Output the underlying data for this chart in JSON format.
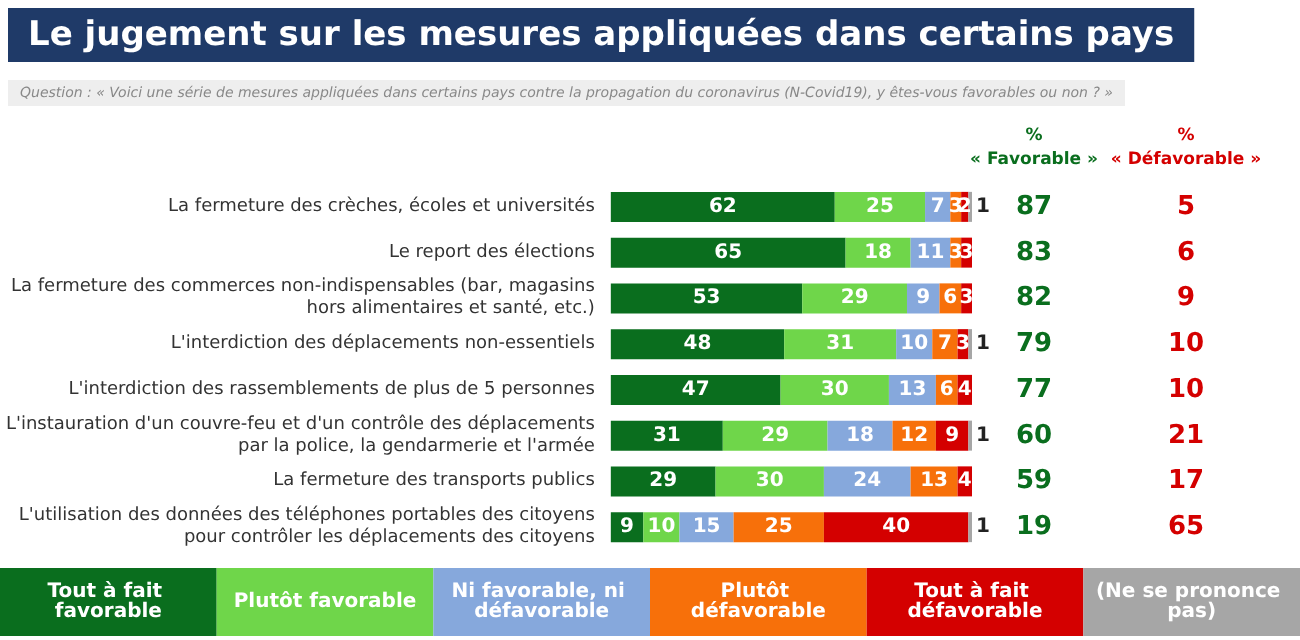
{
  "chart_data": {
    "type": "bar",
    "orientation": "horizontal",
    "stacked": true,
    "data_labels": true,
    "tick_labels": "y",
    "legend": "bottom",
    "title": "Le jugement sur les mesures appliquées dans certains pays",
    "subtitle": "Question : « Voici une série de mesures appliquées dans certains pays contre la propagation du coronavirus (N-Covid19), y êtes-vous favorables ou non ? »",
    "categories": [
      "La fermeture des crèches, écoles et universités",
      "Le report des élections",
      "La fermeture des commerces non-indispensables (bar, magasins\nhors alimentaires et santé, etc.)",
      "L'interdiction des déplacements non-essentiels",
      "L'interdiction des rassemblements de plus de 5 personnes",
      "L'instauration d'un couvre-feu et d'un contrôle des déplacements\npar la police, la gendarmerie et l'armée",
      "La fermeture des transports publics",
      "L'utilisation des données des téléphones portables des citoyens\npour contrôler les déplacements des citoyens"
    ],
    "series": [
      {
        "name": "Tout à fait favorable",
        "color": "#0a6e1e",
        "values": [
          62,
          65,
          53,
          48,
          47,
          31,
          29,
          9
        ]
      },
      {
        "name": "Plutôt favorable",
        "color": "#6fd64a",
        "values": [
          25,
          18,
          29,
          31,
          30,
          29,
          30,
          10
        ]
      },
      {
        "name": "Ni favorable, ni défavorable",
        "color": "#86a8dc",
        "values": [
          7,
          11,
          9,
          10,
          13,
          18,
          24,
          15
        ]
      },
      {
        "name": "Plutôt défavorable",
        "color": "#f7700a",
        "values": [
          3,
          3,
          6,
          7,
          6,
          12,
          13,
          25
        ]
      },
      {
        "name": "Tout à fait défavorable",
        "color": "#d40000",
        "values": [
          2,
          3,
          3,
          3,
          4,
          9,
          4,
          40
        ]
      },
      {
        "name": "(Ne se prononce pas)",
        "color": "#a6a6a6",
        "values": [
          1,
          null,
          null,
          1,
          null,
          1,
          null,
          1
        ]
      }
    ],
    "annotations": [
      "%\n« Favorable »",
      "%\n« Défavorable »",
      "87",
      "83",
      "82",
      "79",
      "77",
      "60",
      "59",
      "19",
      "5",
      "6",
      "9",
      "10",
      "10",
      "21",
      "17",
      "65"
    ]
  }
}
